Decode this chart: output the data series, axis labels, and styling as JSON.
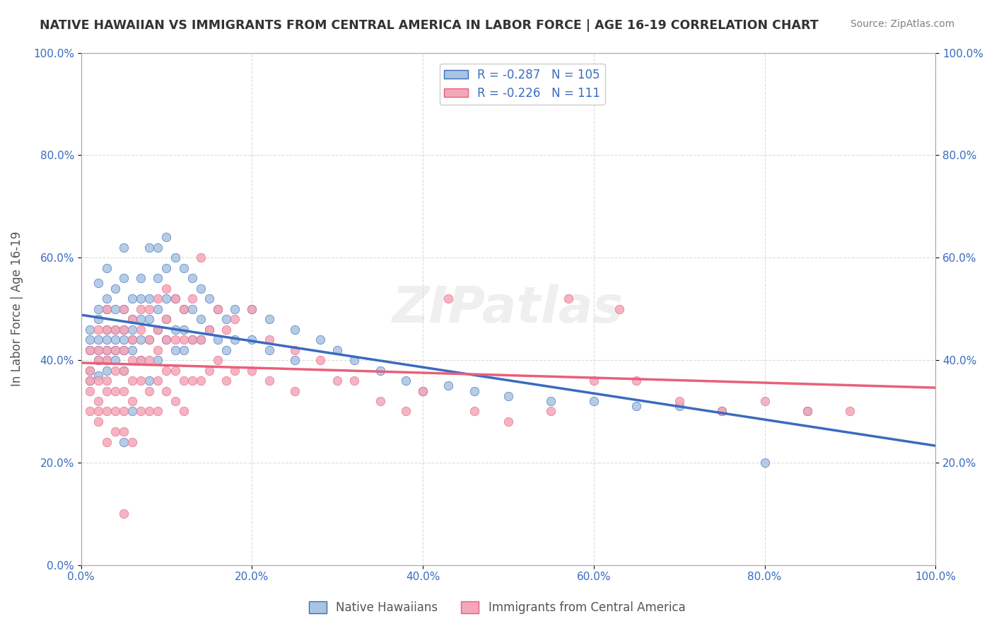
{
  "title": "NATIVE HAWAIIAN VS IMMIGRANTS FROM CENTRAL AMERICA IN LABOR FORCE | AGE 16-19 CORRELATION CHART",
  "source": "Source: ZipAtlas.com",
  "xlabel": "",
  "ylabel": "In Labor Force | Age 16-19",
  "xlim": [
    0.0,
    1.0
  ],
  "ylim": [
    0.0,
    1.0
  ],
  "xticks": [
    0.0,
    0.2,
    0.4,
    0.6,
    0.8,
    1.0
  ],
  "yticks": [
    0.0,
    0.2,
    0.4,
    0.6,
    0.8,
    1.0
  ],
  "xticklabels": [
    "0.0%",
    "20.0%",
    "40.0%",
    "60.0%",
    "80.0%",
    "100.0%"
  ],
  "yticklabels": [
    "0.0%",
    "20.0%",
    "40.0%",
    "60.0%",
    "80.0%",
    "100.0%"
  ],
  "right_yticks": [
    0.2,
    0.4,
    0.6,
    0.8,
    1.0
  ],
  "right_yticklabels": [
    "20.0%",
    "40.0%",
    "60.0%",
    "80.0%",
    "100.0%"
  ],
  "blue_R": -0.287,
  "blue_N": 105,
  "pink_R": -0.226,
  "pink_N": 111,
  "blue_color": "#a8c4e0",
  "pink_color": "#f4a7b9",
  "blue_line_color": "#3a6bbf",
  "pink_line_color": "#e8607a",
  "blue_scatter": [
    [
      0.01,
      0.44
    ],
    [
      0.01,
      0.38
    ],
    [
      0.01,
      0.46
    ],
    [
      0.01,
      0.42
    ],
    [
      0.01,
      0.36
    ],
    [
      0.02,
      0.55
    ],
    [
      0.02,
      0.5
    ],
    [
      0.02,
      0.48
    ],
    [
      0.02,
      0.44
    ],
    [
      0.02,
      0.42
    ],
    [
      0.02,
      0.4
    ],
    [
      0.02,
      0.37
    ],
    [
      0.03,
      0.58
    ],
    [
      0.03,
      0.52
    ],
    [
      0.03,
      0.5
    ],
    [
      0.03,
      0.46
    ],
    [
      0.03,
      0.44
    ],
    [
      0.03,
      0.42
    ],
    [
      0.03,
      0.4
    ],
    [
      0.03,
      0.38
    ],
    [
      0.04,
      0.54
    ],
    [
      0.04,
      0.5
    ],
    [
      0.04,
      0.46
    ],
    [
      0.04,
      0.44
    ],
    [
      0.04,
      0.42
    ],
    [
      0.04,
      0.4
    ],
    [
      0.05,
      0.62
    ],
    [
      0.05,
      0.56
    ],
    [
      0.05,
      0.5
    ],
    [
      0.05,
      0.46
    ],
    [
      0.05,
      0.44
    ],
    [
      0.05,
      0.42
    ],
    [
      0.05,
      0.38
    ],
    [
      0.05,
      0.24
    ],
    [
      0.06,
      0.52
    ],
    [
      0.06,
      0.48
    ],
    [
      0.06,
      0.46
    ],
    [
      0.06,
      0.44
    ],
    [
      0.06,
      0.42
    ],
    [
      0.06,
      0.3
    ],
    [
      0.07,
      0.56
    ],
    [
      0.07,
      0.52
    ],
    [
      0.07,
      0.48
    ],
    [
      0.07,
      0.44
    ],
    [
      0.07,
      0.4
    ],
    [
      0.08,
      0.62
    ],
    [
      0.08,
      0.52
    ],
    [
      0.08,
      0.48
    ],
    [
      0.08,
      0.44
    ],
    [
      0.08,
      0.36
    ],
    [
      0.09,
      0.62
    ],
    [
      0.09,
      0.56
    ],
    [
      0.09,
      0.5
    ],
    [
      0.09,
      0.46
    ],
    [
      0.09,
      0.4
    ],
    [
      0.1,
      0.64
    ],
    [
      0.1,
      0.58
    ],
    [
      0.1,
      0.52
    ],
    [
      0.1,
      0.48
    ],
    [
      0.1,
      0.44
    ],
    [
      0.11,
      0.6
    ],
    [
      0.11,
      0.52
    ],
    [
      0.11,
      0.46
    ],
    [
      0.11,
      0.42
    ],
    [
      0.12,
      0.58
    ],
    [
      0.12,
      0.5
    ],
    [
      0.12,
      0.46
    ],
    [
      0.12,
      0.42
    ],
    [
      0.13,
      0.56
    ],
    [
      0.13,
      0.5
    ],
    [
      0.13,
      0.44
    ],
    [
      0.14,
      0.54
    ],
    [
      0.14,
      0.48
    ],
    [
      0.14,
      0.44
    ],
    [
      0.15,
      0.52
    ],
    [
      0.15,
      0.46
    ],
    [
      0.16,
      0.5
    ],
    [
      0.16,
      0.44
    ],
    [
      0.17,
      0.48
    ],
    [
      0.17,
      0.42
    ],
    [
      0.18,
      0.5
    ],
    [
      0.18,
      0.44
    ],
    [
      0.2,
      0.5
    ],
    [
      0.2,
      0.44
    ],
    [
      0.22,
      0.48
    ],
    [
      0.22,
      0.42
    ],
    [
      0.25,
      0.46
    ],
    [
      0.25,
      0.4
    ],
    [
      0.28,
      0.44
    ],
    [
      0.3,
      0.42
    ],
    [
      0.32,
      0.4
    ],
    [
      0.35,
      0.38
    ],
    [
      0.38,
      0.36
    ],
    [
      0.4,
      0.34
    ],
    [
      0.43,
      0.35
    ],
    [
      0.46,
      0.34
    ],
    [
      0.5,
      0.33
    ],
    [
      0.55,
      0.32
    ],
    [
      0.6,
      0.32
    ],
    [
      0.65,
      0.31
    ],
    [
      0.7,
      0.31
    ],
    [
      0.75,
      0.3
    ],
    [
      0.8,
      0.2
    ],
    [
      0.85,
      0.3
    ]
  ],
  "pink_scatter": [
    [
      0.01,
      0.42
    ],
    [
      0.01,
      0.38
    ],
    [
      0.01,
      0.36
    ],
    [
      0.01,
      0.34
    ],
    [
      0.01,
      0.3
    ],
    [
      0.02,
      0.46
    ],
    [
      0.02,
      0.42
    ],
    [
      0.02,
      0.4
    ],
    [
      0.02,
      0.36
    ],
    [
      0.02,
      0.32
    ],
    [
      0.02,
      0.3
    ],
    [
      0.02,
      0.28
    ],
    [
      0.03,
      0.5
    ],
    [
      0.03,
      0.46
    ],
    [
      0.03,
      0.42
    ],
    [
      0.03,
      0.4
    ],
    [
      0.03,
      0.36
    ],
    [
      0.03,
      0.34
    ],
    [
      0.03,
      0.3
    ],
    [
      0.03,
      0.24
    ],
    [
      0.04,
      0.46
    ],
    [
      0.04,
      0.42
    ],
    [
      0.04,
      0.38
    ],
    [
      0.04,
      0.34
    ],
    [
      0.04,
      0.3
    ],
    [
      0.04,
      0.26
    ],
    [
      0.05,
      0.5
    ],
    [
      0.05,
      0.46
    ],
    [
      0.05,
      0.42
    ],
    [
      0.05,
      0.38
    ],
    [
      0.05,
      0.34
    ],
    [
      0.05,
      0.3
    ],
    [
      0.05,
      0.26
    ],
    [
      0.05,
      0.1
    ],
    [
      0.06,
      0.48
    ],
    [
      0.06,
      0.44
    ],
    [
      0.06,
      0.4
    ],
    [
      0.06,
      0.36
    ],
    [
      0.06,
      0.32
    ],
    [
      0.06,
      0.24
    ],
    [
      0.07,
      0.5
    ],
    [
      0.07,
      0.46
    ],
    [
      0.07,
      0.4
    ],
    [
      0.07,
      0.36
    ],
    [
      0.07,
      0.3
    ],
    [
      0.08,
      0.5
    ],
    [
      0.08,
      0.44
    ],
    [
      0.08,
      0.4
    ],
    [
      0.08,
      0.34
    ],
    [
      0.08,
      0.3
    ],
    [
      0.09,
      0.52
    ],
    [
      0.09,
      0.46
    ],
    [
      0.09,
      0.42
    ],
    [
      0.09,
      0.36
    ],
    [
      0.09,
      0.3
    ],
    [
      0.1,
      0.54
    ],
    [
      0.1,
      0.48
    ],
    [
      0.1,
      0.44
    ],
    [
      0.1,
      0.38
    ],
    [
      0.1,
      0.34
    ],
    [
      0.11,
      0.52
    ],
    [
      0.11,
      0.44
    ],
    [
      0.11,
      0.38
    ],
    [
      0.11,
      0.32
    ],
    [
      0.12,
      0.5
    ],
    [
      0.12,
      0.44
    ],
    [
      0.12,
      0.36
    ],
    [
      0.12,
      0.3
    ],
    [
      0.13,
      0.52
    ],
    [
      0.13,
      0.44
    ],
    [
      0.13,
      0.36
    ],
    [
      0.14,
      0.6
    ],
    [
      0.14,
      0.44
    ],
    [
      0.14,
      0.36
    ],
    [
      0.15,
      0.46
    ],
    [
      0.15,
      0.38
    ],
    [
      0.16,
      0.5
    ],
    [
      0.16,
      0.4
    ],
    [
      0.17,
      0.46
    ],
    [
      0.17,
      0.36
    ],
    [
      0.18,
      0.48
    ],
    [
      0.18,
      0.38
    ],
    [
      0.2,
      0.5
    ],
    [
      0.2,
      0.38
    ],
    [
      0.22,
      0.44
    ],
    [
      0.22,
      0.36
    ],
    [
      0.25,
      0.42
    ],
    [
      0.25,
      0.34
    ],
    [
      0.28,
      0.4
    ],
    [
      0.3,
      0.36
    ],
    [
      0.32,
      0.36
    ],
    [
      0.35,
      0.32
    ],
    [
      0.38,
      0.3
    ],
    [
      0.4,
      0.34
    ],
    [
      0.43,
      0.52
    ],
    [
      0.46,
      0.3
    ],
    [
      0.5,
      0.28
    ],
    [
      0.55,
      0.3
    ],
    [
      0.57,
      0.52
    ],
    [
      0.6,
      0.36
    ],
    [
      0.63,
      0.5
    ],
    [
      0.65,
      0.36
    ],
    [
      0.7,
      0.32
    ],
    [
      0.75,
      0.3
    ],
    [
      0.8,
      0.32
    ],
    [
      0.85,
      0.3
    ],
    [
      0.9,
      0.3
    ]
  ],
  "background_color": "#ffffff",
  "grid_color": "#cccccc",
  "title_color": "#333333",
  "axis_label_color": "#555555",
  "tick_color": "#3a6bbf",
  "watermark": "ZIPatlas",
  "legend_label1": "Native Hawaiians",
  "legend_label2": "Immigrants from Central America"
}
